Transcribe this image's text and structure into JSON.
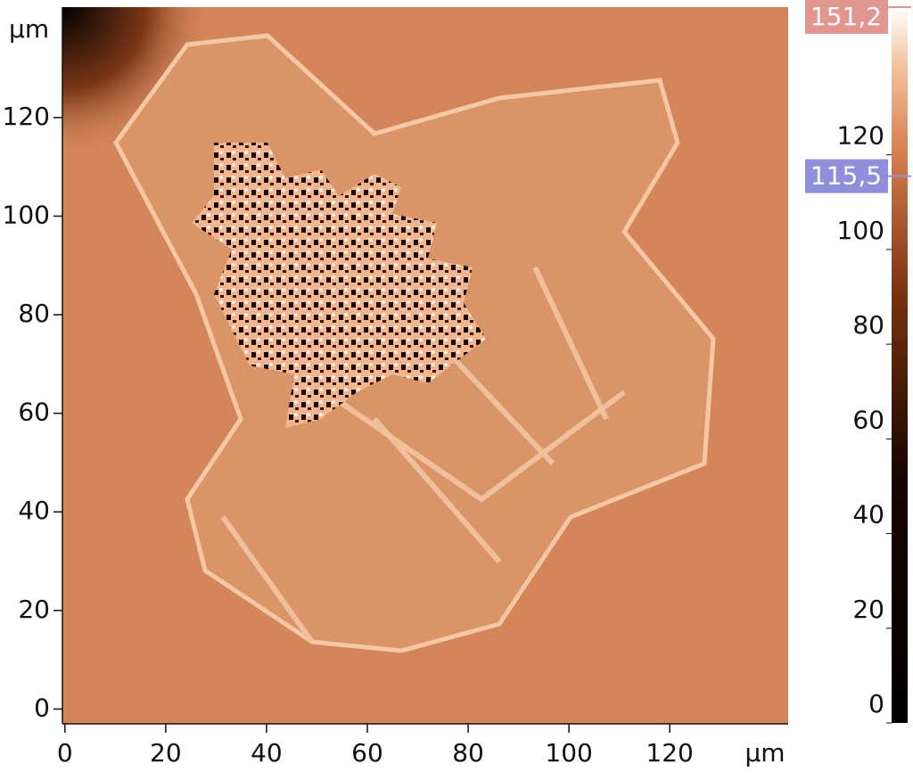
{
  "chart_data": {
    "type": "image",
    "x_unit": "µm",
    "y_unit": "µm",
    "xlim": [
      -0.5,
      143.5
    ],
    "xticks": [
      0,
      20,
      40,
      60,
      80,
      100,
      120
    ],
    "ylim": [
      -3,
      142.4
    ],
    "yticks": [
      0,
      20,
      40,
      60,
      80,
      100,
      120
    ],
    "colorbar": {
      "lim": [
        0,
        151.2
      ],
      "ticks": [
        0,
        20,
        40,
        60,
        80,
        100,
        120
      ],
      "markers": [
        {
          "value": 151.2,
          "label": "151,2",
          "color": "#e39690"
        },
        {
          "value": 115.5,
          "label": "115,5",
          "color": "#8f8fdc"
        }
      ]
    }
  }
}
